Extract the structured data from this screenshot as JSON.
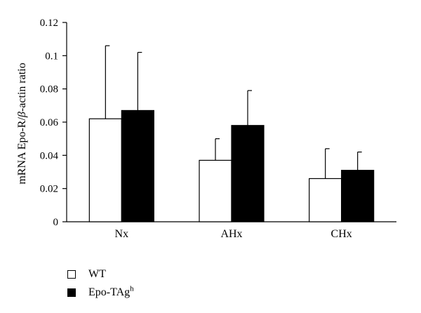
{
  "chart_data": {
    "type": "bar",
    "ylabel_prefix": "mRNA Epo-R/",
    "ylabel_beta": "β",
    "ylabel_suffix": "-actin ratio",
    "ylim": [
      0,
      0.12
    ],
    "yticks": [
      "0",
      "0.02",
      "0.04",
      "0.06",
      "0.08",
      "0.1",
      "0.12"
    ],
    "categories": [
      "Nx",
      "AHx",
      "CHx"
    ],
    "series": [
      {
        "name": "WT",
        "values": [
          0.062,
          0.037,
          0.026
        ],
        "errors": [
          0.044,
          0.013,
          0.018
        ],
        "color": "#ffffff"
      },
      {
        "name": "Epo-TAg",
        "name_sup": "h",
        "values": [
          0.067,
          0.058,
          0.031
        ],
        "errors": [
          0.035,
          0.021,
          0.011
        ],
        "color": "#000000"
      }
    ],
    "legend_position": "bottom-left",
    "grid": false
  }
}
